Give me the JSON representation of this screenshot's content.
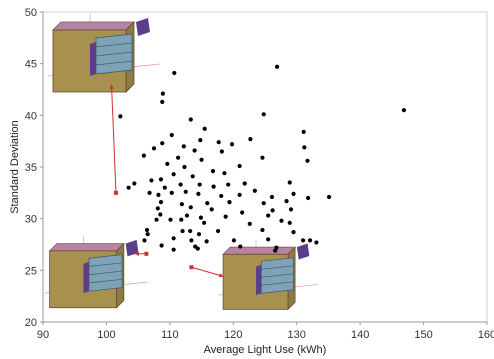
{
  "chart_data": {
    "type": "scatter",
    "title": "",
    "xlabel": "Average Light Use (kWh)",
    "ylabel": "Standard  Deviation",
    "xlim": [
      90,
      160
    ],
    "ylim": [
      20,
      50
    ],
    "xticks": [
      "90",
      "100",
      "110",
      "120",
      "130",
      "140",
      "150",
      "160"
    ],
    "yticks": [
      "20",
      "25",
      "30",
      "35",
      "40",
      "45",
      "50"
    ],
    "grid": false,
    "legend": "none",
    "point_color": "#000000",
    "annotation_color": "#d03030",
    "points": [
      {
        "x": 102.2,
        "y": 39.9
      },
      {
        "x": 110.7,
        "y": 44.1
      },
      {
        "x": 108.9,
        "y": 42.1
      },
      {
        "x": 108.8,
        "y": 41.3
      },
      {
        "x": 126.9,
        "y": 44.7
      },
      {
        "x": 146.9,
        "y": 40.5
      },
      {
        "x": 124.8,
        "y": 40.1
      },
      {
        "x": 131.1,
        "y": 38.4
      },
      {
        "x": 115.5,
        "y": 38.7
      },
      {
        "x": 113.3,
        "y": 39.6
      },
      {
        "x": 110.3,
        "y": 38.1
      },
      {
        "x": 107.5,
        "y": 36.8
      },
      {
        "x": 108.8,
        "y": 37.3
      },
      {
        "x": 114.8,
        "y": 37.6
      },
      {
        "x": 117.7,
        "y": 37.4
      },
      {
        "x": 119.8,
        "y": 37.2
      },
      {
        "x": 122.7,
        "y": 37.7
      },
      {
        "x": 131.2,
        "y": 36.9
      },
      {
        "x": 112.2,
        "y": 37.0
      },
      {
        "x": 113.9,
        "y": 36.6
      },
      {
        "x": 105.9,
        "y": 36.1
      },
      {
        "x": 111.3,
        "y": 35.9
      },
      {
        "x": 115.0,
        "y": 35.7
      },
      {
        "x": 118.2,
        "y": 36.5
      },
      {
        "x": 124.6,
        "y": 35.9
      },
      {
        "x": 131.7,
        "y": 35.6
      },
      {
        "x": 109.6,
        "y": 35.3
      },
      {
        "x": 112.3,
        "y": 35.0
      },
      {
        "x": 116.8,
        "y": 34.6
      },
      {
        "x": 118.6,
        "y": 34.4
      },
      {
        "x": 121.0,
        "y": 35.1
      },
      {
        "x": 110.6,
        "y": 34.3
      },
      {
        "x": 113.6,
        "y": 34.1
      },
      {
        "x": 108.6,
        "y": 33.8
      },
      {
        "x": 104.4,
        "y": 33.4
      },
      {
        "x": 107.1,
        "y": 33.7
      },
      {
        "x": 103.5,
        "y": 33.0
      },
      {
        "x": 109.2,
        "y": 33.0
      },
      {
        "x": 111.7,
        "y": 33.3
      },
      {
        "x": 114.7,
        "y": 33.3
      },
      {
        "x": 116.9,
        "y": 33.1
      },
      {
        "x": 119.2,
        "y": 33.3
      },
      {
        "x": 121.8,
        "y": 33.4
      },
      {
        "x": 128.9,
        "y": 33.5
      },
      {
        "x": 106.8,
        "y": 32.5
      },
      {
        "x": 108.2,
        "y": 32.3
      },
      {
        "x": 110.3,
        "y": 32.5
      },
      {
        "x": 112.5,
        "y": 32.6
      },
      {
        "x": 114.5,
        "y": 32.4
      },
      {
        "x": 118.1,
        "y": 32.2
      },
      {
        "x": 121.0,
        "y": 32.3
      },
      {
        "x": 123.4,
        "y": 32.7
      },
      {
        "x": 126.1,
        "y": 32.1
      },
      {
        "x": 129.5,
        "y": 32.4
      },
      {
        "x": 131.8,
        "y": 32.0
      },
      {
        "x": 135.1,
        "y": 32.1
      },
      {
        "x": 108.6,
        "y": 31.6
      },
      {
        "x": 111.9,
        "y": 31.4
      },
      {
        "x": 115.9,
        "y": 31.5
      },
      {
        "x": 119.4,
        "y": 31.6
      },
      {
        "x": 124.8,
        "y": 31.5
      },
      {
        "x": 128.4,
        "y": 31.7
      },
      {
        "x": 108.1,
        "y": 31.0
      },
      {
        "x": 113.3,
        "y": 31.1
      },
      {
        "x": 116.6,
        "y": 30.9
      },
      {
        "x": 121.4,
        "y": 30.6
      },
      {
        "x": 126.2,
        "y": 30.8
      },
      {
        "x": 129.1,
        "y": 30.9
      },
      {
        "x": 108.5,
        "y": 30.4
      },
      {
        "x": 112.7,
        "y": 30.3
      },
      {
        "x": 114.9,
        "y": 30.1
      },
      {
        "x": 118.8,
        "y": 30.2
      },
      {
        "x": 125.5,
        "y": 30.3
      },
      {
        "x": 107.9,
        "y": 29.9
      },
      {
        "x": 110.1,
        "y": 29.9
      },
      {
        "x": 111.8,
        "y": 29.9
      },
      {
        "x": 115.4,
        "y": 29.6
      },
      {
        "x": 122.6,
        "y": 29.5
      },
      {
        "x": 127.6,
        "y": 29.8
      },
      {
        "x": 128.9,
        "y": 29.6
      },
      {
        "x": 106.4,
        "y": 28.9
      },
      {
        "x": 112.0,
        "y": 28.8
      },
      {
        "x": 113.2,
        "y": 28.8
      },
      {
        "x": 117.6,
        "y": 28.8
      },
      {
        "x": 124.6,
        "y": 28.9
      },
      {
        "x": 129.5,
        "y": 28.7
      },
      {
        "x": 106.5,
        "y": 28.5
      },
      {
        "x": 110.6,
        "y": 28.1
      },
      {
        "x": 114.6,
        "y": 28.5
      },
      {
        "x": 106.0,
        "y": 27.9
      },
      {
        "x": 113.4,
        "y": 27.9
      },
      {
        "x": 115.8,
        "y": 27.8
      },
      {
        "x": 120.1,
        "y": 27.9
      },
      {
        "x": 125.5,
        "y": 28.0
      },
      {
        "x": 132.1,
        "y": 27.9
      },
      {
        "x": 133.1,
        "y": 27.7
      },
      {
        "x": 108.7,
        "y": 27.4
      },
      {
        "x": 114.0,
        "y": 27.3
      },
      {
        "x": 114.4,
        "y": 27.1
      },
      {
        "x": 121.1,
        "y": 27.3
      },
      {
        "x": 126.8,
        "y": 27.2
      },
      {
        "x": 126.6,
        "y": 26.9
      },
      {
        "x": 131.0,
        "y": 27.9
      },
      {
        "x": 110.6,
        "y": 27.0
      }
    ],
    "callouts": [
      {
        "from": {
          "x": 101.5,
          "y": 32.5
        },
        "to": {
          "x": 100.8,
          "y": 43.0
        }
      },
      {
        "from": {
          "x": 106.3,
          "y": 26.6
        },
        "to": {
          "x": 104.4,
          "y": 26.6
        }
      },
      {
        "from": {
          "x": 113.4,
          "y": 25.3
        },
        "to": {
          "x": 118.5,
          "y": 24.4
        }
      }
    ],
    "insets": [
      {
        "icon": "building-cube-icon",
        "anchor": "top-left"
      },
      {
        "icon": "building-cube-icon",
        "anchor": "bottom-left"
      },
      {
        "icon": "building-cube-icon",
        "anchor": "bottom-center"
      }
    ]
  }
}
